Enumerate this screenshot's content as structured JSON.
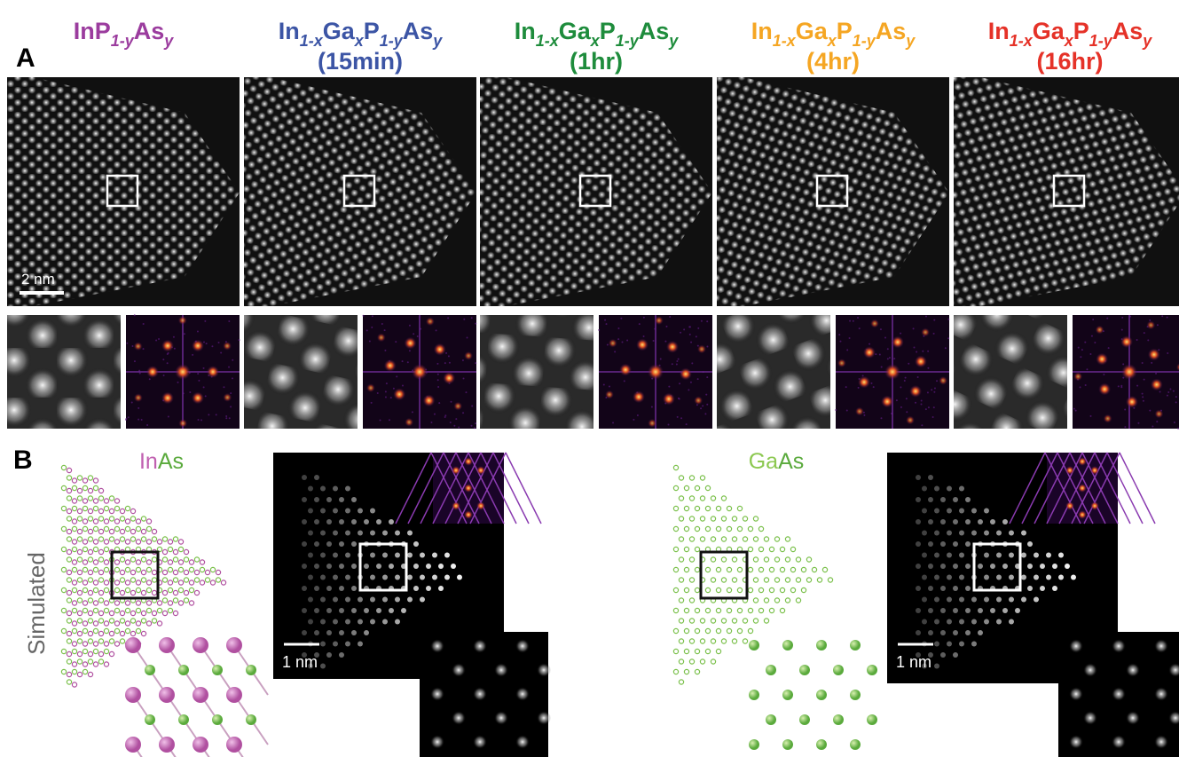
{
  "panel_a": {
    "label": "A",
    "scale_bar": "2 nm",
    "columns": [
      {
        "color": "#9b3c9e",
        "title": [
          {
            "text": "InP"
          },
          {
            "text": "1-y",
            "sub": true
          },
          {
            "text": "As"
          },
          {
            "text": "y",
            "sub": true
          }
        ]
      },
      {
        "color": "#3c55a5",
        "title": [
          {
            "text": "In"
          },
          {
            "text": "1-x",
            "sub": true
          },
          {
            "text": "Ga"
          },
          {
            "text": "x",
            "sub": true
          },
          {
            "text": "P"
          },
          {
            "text": "1-y",
            "sub": true
          },
          {
            "text": "As"
          },
          {
            "text": "y",
            "sub": true
          }
        ],
        "time": "(15min)"
      },
      {
        "color": "#1e8c3c",
        "title": [
          {
            "text": "In"
          },
          {
            "text": "1-x",
            "sub": true
          },
          {
            "text": "Ga"
          },
          {
            "text": "x",
            "sub": true
          },
          {
            "text": "P"
          },
          {
            "text": "1-y",
            "sub": true
          },
          {
            "text": "As"
          },
          {
            "text": "y",
            "sub": true
          }
        ],
        "time": "(1hr)"
      },
      {
        "color": "#f5a623",
        "title": [
          {
            "text": "In"
          },
          {
            "text": "1-x",
            "sub": true
          },
          {
            "text": "Ga"
          },
          {
            "text": "x",
            "sub": true
          },
          {
            "text": "P"
          },
          {
            "text": "1-y",
            "sub": true
          },
          {
            "text": "As"
          },
          {
            "text": "y",
            "sub": true
          }
        ],
        "time": "(4hr)"
      },
      {
        "color": "#e53228",
        "title": [
          {
            "text": "In"
          },
          {
            "text": "1-x",
            "sub": true
          },
          {
            "text": "Ga"
          },
          {
            "text": "x",
            "sub": true
          },
          {
            "text": "P"
          },
          {
            "text": "1-y",
            "sub": true
          },
          {
            "text": "As"
          },
          {
            "text": "y",
            "sub": true
          }
        ],
        "time": "(16hr)"
      }
    ]
  },
  "panel_b": {
    "label": "B",
    "side_label": "Simulated",
    "models": [
      {
        "name": [
          {
            "text": "In",
            "color": "#c060b0"
          },
          {
            "text": "As",
            "color": "#5aaa3c"
          }
        ],
        "scale_bar": "1 nm"
      },
      {
        "name": [
          {
            "text": "Ga",
            "color": "#8cc850"
          },
          {
            "text": "As",
            "color": "#5aaa3c"
          }
        ],
        "scale_bar": "1 nm"
      }
    ]
  }
}
